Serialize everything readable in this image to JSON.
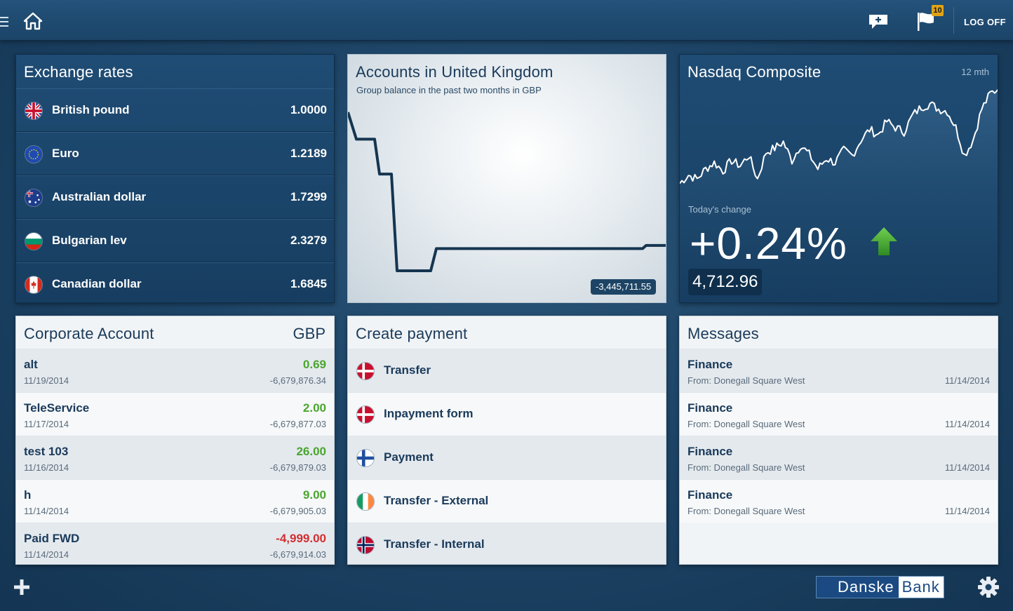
{
  "topbar": {
    "menu_icon": "menu-icon",
    "home_icon": "home-icon",
    "new_message_icon": "chat-plus-icon",
    "flag_icon": "flag-icon",
    "flag_badge": "10",
    "logoff_label": "LOG OFF"
  },
  "exchange": {
    "title": "Exchange rates",
    "rates": [
      {
        "name": "British pound",
        "value": "1.0000",
        "flag": "uk-flag-icon"
      },
      {
        "name": "Euro",
        "value": "1.2189",
        "flag": "eu-flag-icon"
      },
      {
        "name": "Australian dollar",
        "value": "1.7299",
        "flag": "au-flag-icon"
      },
      {
        "name": "Bulgarian lev",
        "value": "2.3279",
        "flag": "bg-flag-icon"
      },
      {
        "name": "Canadian dollar",
        "value": "1.6845",
        "flag": "ca-flag-icon"
      }
    ]
  },
  "accounts": {
    "title": "Accounts in United Kingdom",
    "subtitle": "Group balance in the past two months in GBP",
    "balance": "-3,445,711.55"
  },
  "chart_data": [
    {
      "type": "line",
      "title": "Accounts in United Kingdom",
      "subtitle": "Group balance in the past two months in GBP",
      "series": [
        {
          "values": [
            1.0,
            0.83,
            0.83,
            0.61,
            0.61,
            0.0,
            0.0,
            0.14,
            0.14,
            0.14,
            0.14,
            0.14,
            0.14,
            0.14,
            0.14,
            0.16,
            0.16
          ]
        }
      ],
      "latest_value_label": "-3,445,711.55"
    },
    {
      "type": "line",
      "title": "Nasdaq Composite",
      "period": "12 mth",
      "series": [
        {
          "values": [
            0.08,
            0.16,
            0.12,
            0.22,
            0.28,
            0.2,
            0.3,
            0.25,
            0.35,
            0.12,
            0.38,
            0.42,
            0.48,
            0.3,
            0.45,
            0.36,
            0.22,
            0.32,
            0.28,
            0.4,
            0.35,
            0.5,
            0.6,
            0.55,
            0.68,
            0.62,
            0.58,
            0.74,
            0.82,
            0.85,
            0.8,
            0.78,
            0.62,
            0.35,
            0.5,
            0.8,
            0.95,
            1.0
          ]
        }
      ],
      "today_change": "+0.24%",
      "index_value": "4,712.96"
    }
  ],
  "nasdaq": {
    "title": "Nasdaq Composite",
    "period": "12 mth",
    "today_label": "Today's change",
    "change": "+0.24%",
    "index_value": "4,712.96"
  },
  "corporate": {
    "title": "Corporate Account",
    "currency": "GBP",
    "transactions": [
      {
        "name": "alt",
        "date": "11/19/2014",
        "amount": "0.69",
        "balance": "-6,679,876.34",
        "sign": "pos"
      },
      {
        "name": "TeleService",
        "date": "11/17/2014",
        "amount": "2.00",
        "balance": "-6,679,877.03",
        "sign": "pos"
      },
      {
        "name": "test 103",
        "date": "11/16/2014",
        "amount": "26.00",
        "balance": "-6,679,879.03",
        "sign": "pos"
      },
      {
        "name": "h",
        "date": "11/14/2014",
        "amount": "9.00",
        "balance": "-6,679,905.03",
        "sign": "pos"
      },
      {
        "name": "Paid FWD",
        "date": "11/14/2014",
        "amount": "-4,999.00",
        "balance": "-6,679,914.03",
        "sign": "neg"
      }
    ]
  },
  "payment": {
    "title": "Create payment",
    "items": [
      {
        "label": "Transfer",
        "flag": "dk-flag-icon"
      },
      {
        "label": "Inpayment form",
        "flag": "dk-flag-icon"
      },
      {
        "label": "Payment",
        "flag": "fi-flag-icon"
      },
      {
        "label": "Transfer - External",
        "flag": "ie-flag-icon"
      },
      {
        "label": "Transfer - Internal",
        "flag": "no-flag-icon"
      }
    ]
  },
  "messages": {
    "title": "Messages",
    "items": [
      {
        "title": "Finance",
        "from": "From: Donegall Square West",
        "date": "11/14/2014"
      },
      {
        "title": "Finance",
        "from": "From: Donegall Square West",
        "date": "11/14/2014"
      },
      {
        "title": "Finance",
        "from": "From: Donegall Square West",
        "date": "11/14/2014"
      },
      {
        "title": "Finance",
        "from": "From: Donegall Square West",
        "date": "11/14/2014"
      }
    ]
  },
  "footer": {
    "add_icon": "plus-icon",
    "logo_part1": "Danske",
    "logo_part2": "Bank",
    "settings_icon": "gear-icon"
  },
  "colors": {
    "background": "#1d4466",
    "positive": "#4aa52e",
    "negative": "#d32f2f",
    "badge": "#e0a316"
  }
}
